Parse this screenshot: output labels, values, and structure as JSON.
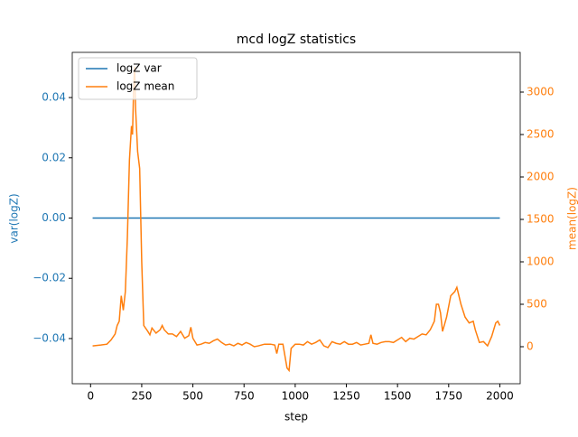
{
  "chart_data": {
    "type": "line",
    "title": "mcd logZ statistics",
    "xlabel": "step",
    "ylabel": "var(logZ)",
    "y2label": "mean(logZ)",
    "xlim": [
      -89.5,
      2099.5
    ],
    "xticks": [
      0,
      250,
      500,
      750,
      1000,
      1250,
      1500,
      1750,
      2000
    ],
    "ylim": [
      -0.055,
      0.055
    ],
    "yticks": [
      {
        "value": -0.04,
        "label": "−0.04"
      },
      {
        "value": -0.02,
        "label": "−0.02"
      },
      {
        "value": 0,
        "label": "0.00"
      },
      0.02,
      0.04
    ],
    "y2lim": [
      -436,
      3468
    ],
    "y2ticks": [
      0,
      500,
      1000,
      1500,
      2000,
      2500,
      3000
    ],
    "legend": "upper left",
    "ycolor": "#1f77b4",
    "y2color": "#ff7f0e",
    "series": [
      {
        "name": "logZ var",
        "color": "#1f77b4",
        "axis": "y",
        "x": [
          10,
          2000
        ],
        "values": [
          0,
          0
        ]
      },
      {
        "name": "logZ mean",
        "color": "#ff7f0e",
        "axis": "y2",
        "x": [
          10,
          50,
          80,
          100,
          120,
          130,
          140,
          150,
          160,
          170,
          180,
          190,
          200,
          205,
          210,
          215,
          220,
          230,
          240,
          250,
          260,
          280,
          290,
          300,
          320,
          340,
          350,
          360,
          380,
          400,
          420,
          440,
          460,
          480,
          490,
          500,
          520,
          540,
          560,
          580,
          600,
          620,
          640,
          660,
          680,
          700,
          720,
          740,
          760,
          780,
          800,
          820,
          850,
          880,
          900,
          910,
          920,
          940,
          960,
          970,
          980,
          1000,
          1020,
          1040,
          1060,
          1080,
          1100,
          1120,
          1140,
          1160,
          1180,
          1200,
          1220,
          1240,
          1260,
          1280,
          1300,
          1320,
          1340,
          1360,
          1370,
          1380,
          1400,
          1420,
          1440,
          1460,
          1480,
          1500,
          1520,
          1540,
          1560,
          1580,
          1600,
          1620,
          1640,
          1660,
          1680,
          1690,
          1700,
          1710,
          1720,
          1740,
          1760,
          1780,
          1790,
          1800,
          1810,
          1830,
          1850,
          1870,
          1880,
          1900,
          1920,
          1940,
          1960,
          1980,
          1990,
          2000
        ],
        "values": [
          10,
          20,
          30,
          80,
          150,
          250,
          300,
          600,
          430,
          650,
          1300,
          2200,
          2600,
          2500,
          3000,
          3300,
          2800,
          2300,
          2100,
          1000,
          250,
          180,
          140,
          220,
          160,
          200,
          250,
          200,
          150,
          150,
          120,
          180,
          100,
          130,
          230,
          100,
          20,
          30,
          50,
          40,
          70,
          90,
          50,
          20,
          30,
          10,
          40,
          20,
          50,
          30,
          0,
          10,
          30,
          30,
          20,
          -80,
          30,
          30,
          -250,
          -280,
          -20,
          30,
          30,
          20,
          60,
          30,
          50,
          80,
          10,
          -10,
          60,
          40,
          30,
          60,
          30,
          30,
          50,
          20,
          30,
          40,
          140,
          40,
          30,
          50,
          60,
          60,
          50,
          80,
          110,
          60,
          100,
          90,
          120,
          150,
          140,
          200,
          300,
          500,
          500,
          400,
          180,
          350,
          600,
          650,
          700,
          600,
          500,
          350,
          280,
          300,
          200,
          50,
          60,
          10,
          120,
          280,
          300,
          250
        ]
      }
    ]
  }
}
